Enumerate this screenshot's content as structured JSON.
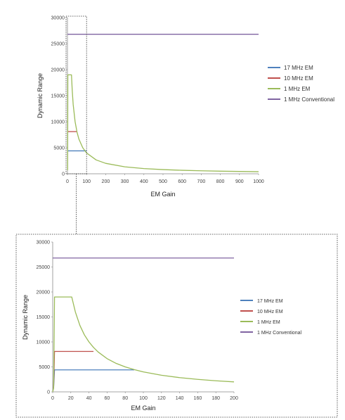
{
  "chart_data": [
    {
      "type": "line",
      "id": "full-range",
      "xlabel": "EM Gain",
      "ylabel": "Dynamic Range",
      "xlim": [
        0,
        1000
      ],
      "ylim": [
        0,
        30000
      ],
      "xticks": [
        0,
        100,
        200,
        300,
        400,
        500,
        600,
        700,
        800,
        900,
        1000
      ],
      "yticks": [
        0,
        5000,
        10000,
        15000,
        20000,
        25000,
        30000
      ],
      "grid": false,
      "legend": "right",
      "series": [
        {
          "name": "17 MHz EM",
          "color": "#4f81bd",
          "x": [
            1,
            100
          ],
          "y": [
            4400,
            4400
          ]
        },
        {
          "name": "10 MHz EM",
          "color": "#c0504d",
          "x": [
            1,
            50
          ],
          "y": [
            8100,
            8100
          ]
        },
        {
          "name": "1 MHz EM",
          "color": "#9bbb59",
          "x": [
            1,
            2,
            5,
            10,
            21,
            25,
            30,
            40,
            50,
            60,
            80,
            100,
            150,
            200,
            300,
            400,
            500,
            600,
            700,
            800,
            900,
            1000
          ],
          "y": [
            700,
            19000,
            19000,
            19000,
            19000,
            16000,
            13300,
            10000,
            8000,
            6650,
            5000,
            4000,
            2660,
            2000,
            1330,
            1000,
            800,
            665,
            570,
            500,
            445,
            400
          ]
        },
        {
          "name": "1 MHz Conventional",
          "color": "#8064a2",
          "x": [
            0,
            1000
          ],
          "y": [
            26800,
            26800
          ]
        }
      ],
      "zoom_box": {
        "x": [
          0,
          100
        ],
        "y": [
          0,
          30000
        ]
      }
    },
    {
      "type": "line",
      "id": "zoom",
      "xlabel": "EM Gain",
      "ylabel": "Dynamic Range",
      "xlim": [
        0,
        200
      ],
      "ylim": [
        0,
        30000
      ],
      "xticks": [
        0,
        20,
        40,
        60,
        80,
        100,
        120,
        140,
        160,
        180,
        200
      ],
      "yticks": [
        0,
        5000,
        10000,
        15000,
        20000,
        25000,
        30000
      ],
      "grid": false,
      "legend": "right",
      "series": [
        {
          "name": "17 MHz EM",
          "color": "#4f81bd",
          "x": [
            1,
            2,
            90
          ],
          "y": [
            700,
            4400,
            4400
          ]
        },
        {
          "name": "10 MHz EM",
          "color": "#c0504d",
          "x": [
            1,
            2,
            45
          ],
          "y": [
            700,
            8100,
            8100
          ]
        },
        {
          "name": "1 MHz EM",
          "color": "#9bbb59",
          "x": [
            0,
            1,
            2,
            5,
            10,
            15,
            20,
            21,
            25,
            30,
            35,
            40,
            45,
            50,
            60,
            70,
            80,
            90,
            100,
            120,
            140,
            160,
            180,
            200
          ],
          "y": [
            0,
            700,
            19000,
            19000,
            19000,
            19000,
            19000,
            19000,
            16000,
            13300,
            11400,
            10000,
            8900,
            8000,
            6650,
            5700,
            5000,
            4450,
            4000,
            3330,
            2850,
            2500,
            2220,
            2000
          ]
        },
        {
          "name": "1 MHz Conventional",
          "color": "#8064a2",
          "x": [
            0,
            200
          ],
          "y": [
            26800,
            26800
          ]
        }
      ]
    }
  ]
}
